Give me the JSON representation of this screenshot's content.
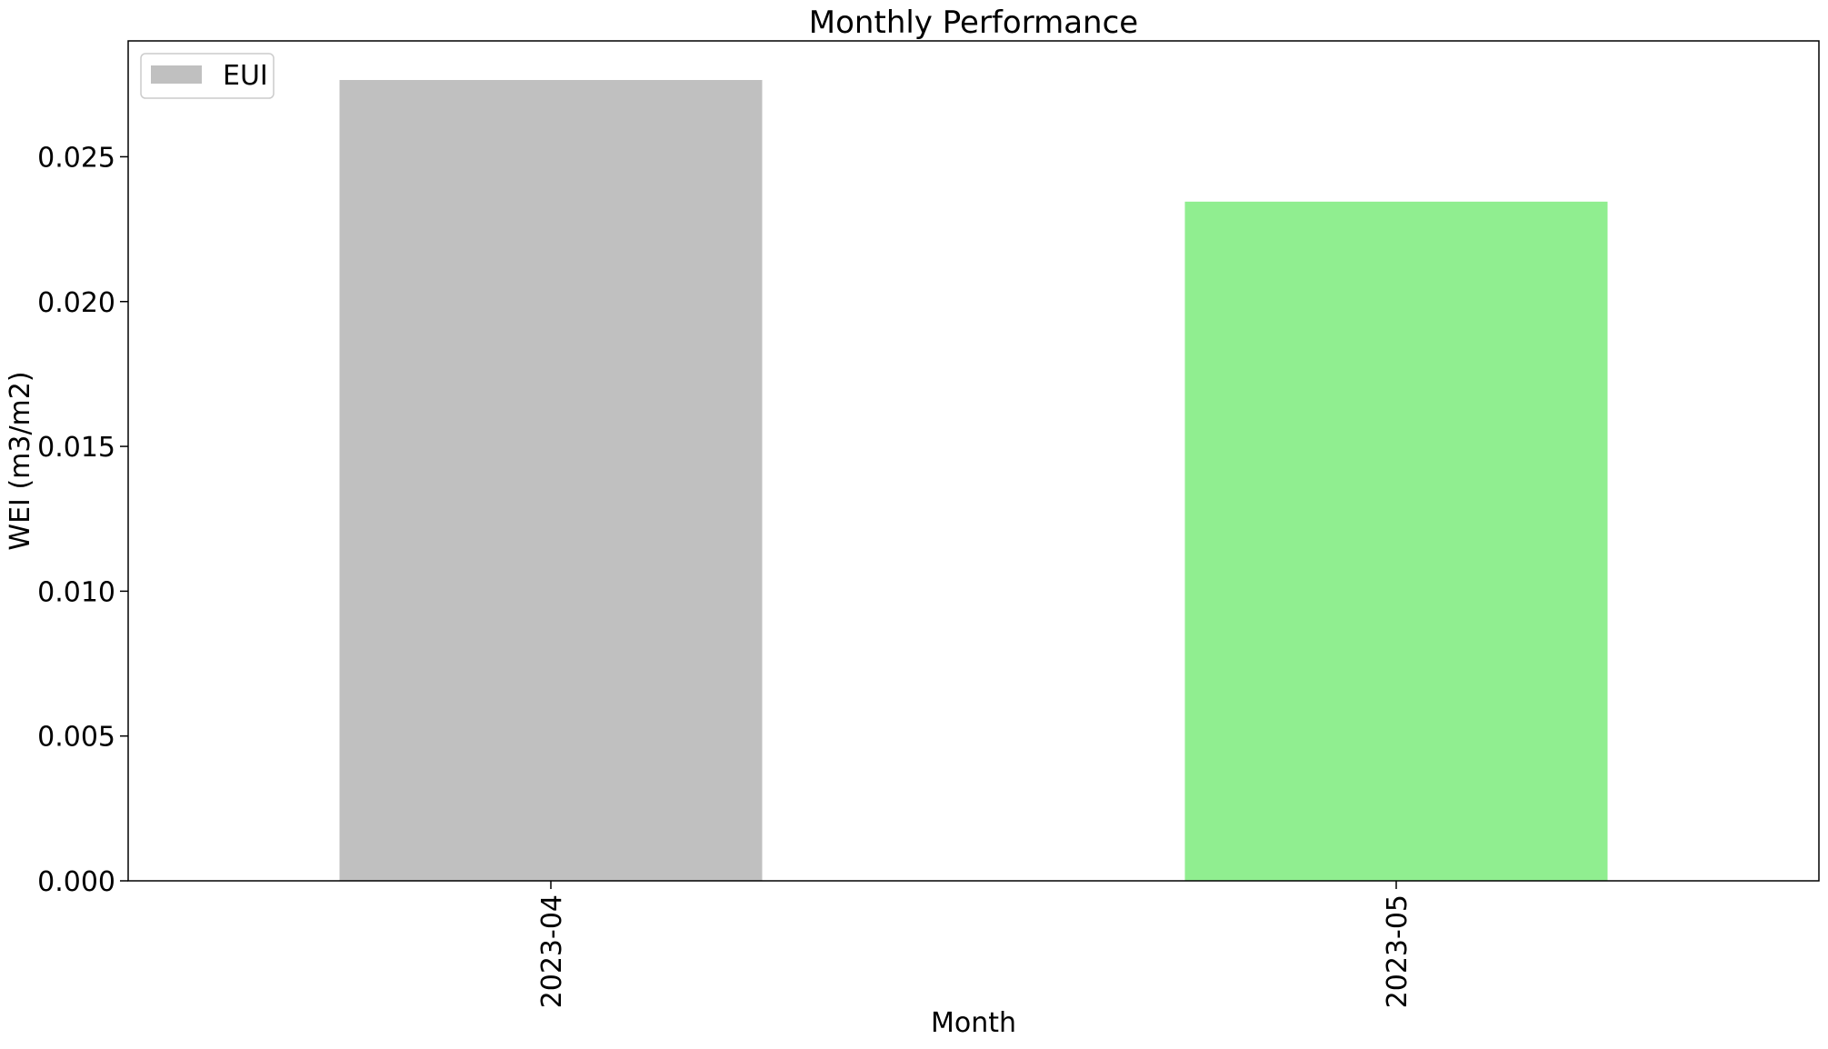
{
  "chart_data": {
    "type": "bar",
    "title": "Monthly Performance",
    "xlabel": "Month",
    "ylabel": "WEI (m3/m2)",
    "categories": [
      "2023-04",
      "2023-05"
    ],
    "values": [
      0.02765,
      0.02345
    ],
    "bar_colors": [
      "#c0c0c0",
      "#90ee90"
    ],
    "ylim": [
      0,
      0.029
    ],
    "yticks": [
      "0.000",
      "0.005",
      "0.010",
      "0.015",
      "0.020",
      "0.025"
    ],
    "ytick_values": [
      0,
      0.005,
      0.01,
      0.015,
      0.02,
      0.025
    ],
    "grid": false,
    "legend": {
      "placement": "top-left",
      "entries": [
        {
          "label": "EUI",
          "color": "#c0c0c0"
        }
      ]
    }
  }
}
